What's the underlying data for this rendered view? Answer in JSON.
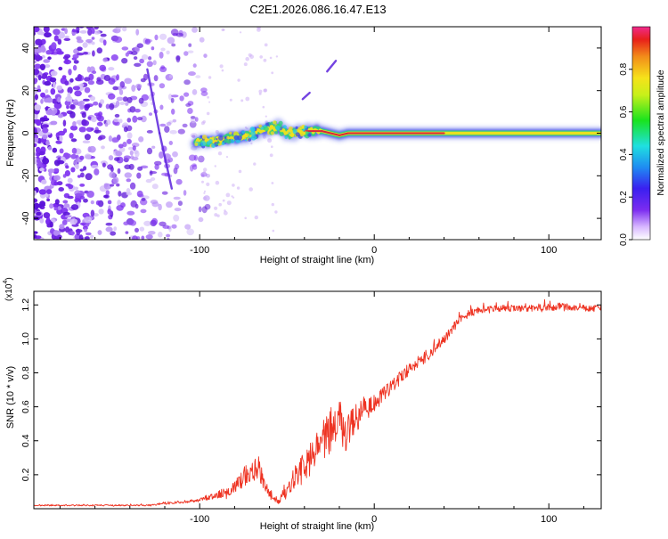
{
  "title": "C2E1.2026.086.16.47.E13",
  "colors": {
    "snr_line": "#ee3322",
    "spectrogram_scatter": "#7a2ee6",
    "ridge_core": "#d7263d",
    "ridge_mid": "#f3e11b",
    "ridge_outer": "#2fd37a",
    "ridge_halo": "#3b48e6"
  },
  "chart_data": [
    {
      "type": "heatmap",
      "title": "C2E1.2026.086.16.47.E13",
      "xlabel": "Height of straight line (km)",
      "ylabel": "Frequency (Hz)",
      "xlim": [
        -195,
        130
      ],
      "ylim": [
        -50,
        50
      ],
      "x_ticks": [
        -100,
        0,
        100
      ],
      "x_tick_labels": [
        "-100",
        "0",
        "100"
      ],
      "y_ticks": [
        -40,
        -20,
        0,
        20,
        40
      ],
      "y_tick_labels": [
        "-40",
        "-20",
        "0",
        "20",
        "40"
      ],
      "colorbar": {
        "label": "Normalized spectral amplitude",
        "range": [
          0,
          1
        ],
        "ticks": [
          0.0,
          0.2,
          0.4,
          0.6,
          0.8
        ],
        "tick_labels": [
          "0.0",
          "0.2",
          "0.4",
          "0.6",
          "0.8"
        ]
      },
      "ridge": {
        "x": [
          -102,
          -95,
          -88,
          -80,
          -72,
          -65,
          -60,
          -55,
          -50,
          -45,
          -40,
          -35,
          -30,
          -25,
          -20,
          -15,
          -10,
          -5,
          0,
          20,
          40,
          60,
          80,
          100,
          120,
          130
        ],
        "y": [
          -4,
          -4,
          -3,
          -2,
          -1,
          1,
          2,
          3,
          0,
          0,
          1,
          1,
          1,
          0,
          -1,
          0,
          0,
          0,
          0,
          0,
          0,
          0,
          0,
          0,
          0,
          0
        ],
        "amplitude": [
          0.3,
          0.35,
          0.4,
          0.45,
          0.5,
          0.55,
          0.6,
          0.6,
          0.65,
          0.7,
          0.8,
          0.85,
          0.8,
          0.85,
          0.85,
          0.8,
          0.85,
          0.8,
          0.95,
          0.95,
          0.7,
          0.65,
          0.6,
          0.6,
          0.7,
          0.7
        ]
      },
      "streaks": [
        {
          "x": [
            -130,
            -123
          ],
          "y": [
            30,
            0
          ]
        },
        {
          "x": [
            -123,
            -116
          ],
          "y": [
            0,
            -26
          ]
        },
        {
          "x": [
            -41,
            -37
          ],
          "y": [
            16,
            19
          ]
        },
        {
          "x": [
            -27,
            -22
          ],
          "y": [
            29,
            34
          ]
        }
      ]
    },
    {
      "type": "line",
      "title": "",
      "xlabel": "Height of straight line (km)",
      "ylabel": "SNR (10 * v/v)",
      "multiplier_label": "(x10",
      "multiplier_exponent": "4",
      "multiplier_close": ")",
      "xlim": [
        -195,
        130
      ],
      "ylim": [
        0,
        1.28
      ],
      "x_ticks": [
        -100,
        0,
        100
      ],
      "x_tick_labels": [
        "-100",
        "0",
        "100"
      ],
      "y_ticks": [
        0.2,
        0.4,
        0.6,
        0.8,
        1.0,
        1.2
      ],
      "y_tick_labels": [
        "0.2",
        "0.4",
        "0.6",
        "0.8",
        "1.0",
        "1.2"
      ],
      "series": [
        {
          "name": "SNR",
          "x": [
            -195,
            -170,
            -150,
            -130,
            -120,
            -110,
            -100,
            -90,
            -80,
            -75,
            -70,
            -66,
            -62,
            -58,
            -55,
            -52,
            -48,
            -44,
            -40,
            -36,
            -32,
            -28,
            -24,
            -20,
            -16,
            -12,
            -8,
            -4,
            0,
            4,
            8,
            12,
            16,
            20,
            25,
            30,
            35,
            40,
            45,
            50,
            60,
            70,
            80,
            90,
            100,
            110,
            120,
            130
          ],
          "values": [
            0.02,
            0.02,
            0.02,
            0.02,
            0.03,
            0.04,
            0.05,
            0.08,
            0.12,
            0.18,
            0.24,
            0.22,
            0.12,
            0.06,
            0.05,
            0.08,
            0.14,
            0.2,
            0.25,
            0.3,
            0.36,
            0.42,
            0.48,
            0.5,
            0.46,
            0.5,
            0.55,
            0.58,
            0.62,
            0.66,
            0.7,
            0.74,
            0.78,
            0.82,
            0.86,
            0.9,
            0.95,
            1.0,
            1.06,
            1.13,
            1.17,
            1.18,
            1.18,
            1.18,
            1.19,
            1.19,
            1.18,
            1.18
          ],
          "noise_amplitude": [
            0.004,
            0.004,
            0.004,
            0.004,
            0.006,
            0.008,
            0.01,
            0.02,
            0.04,
            0.06,
            0.08,
            0.07,
            0.04,
            0.02,
            0.02,
            0.04,
            0.06,
            0.08,
            0.09,
            0.1,
            0.1,
            0.12,
            0.14,
            0.14,
            0.12,
            0.1,
            0.09,
            0.08,
            0.05,
            0.05,
            0.04,
            0.04,
            0.04,
            0.04,
            0.04,
            0.04,
            0.03,
            0.03,
            0.03,
            0.025,
            0.02,
            0.02,
            0.02,
            0.02,
            0.025,
            0.02,
            0.02,
            0.02
          ]
        }
      ]
    }
  ]
}
